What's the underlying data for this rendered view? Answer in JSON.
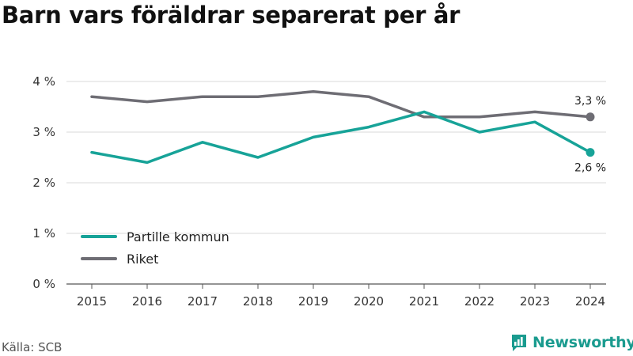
{
  "colors": {
    "series_primary": "#17a398",
    "series_secondary": "#6e6d74",
    "grid": "#d9d9d9",
    "axis_text": "#333333",
    "brand": "#1a9b8f"
  },
  "footer": {
    "source": "Källa: SCB",
    "brand": "Newsworthy"
  },
  "chart_data": {
    "type": "line",
    "title": "Barn vars föräldrar separerat per år",
    "x": [
      2015,
      2016,
      2017,
      2018,
      2019,
      2020,
      2021,
      2022,
      2023,
      2024
    ],
    "series": [
      {
        "name": "Partille kommun",
        "values": [
          2.6,
          2.4,
          2.8,
          2.5,
          2.9,
          3.1,
          3.4,
          3.0,
          3.2,
          2.6
        ],
        "end_label": "2,6 %"
      },
      {
        "name": "Riket",
        "values": [
          3.7,
          3.6,
          3.7,
          3.7,
          3.8,
          3.7,
          3.3,
          3.3,
          3.4,
          3.3
        ],
        "end_label": "3,3 %"
      }
    ],
    "ylim": [
      0,
      4
    ],
    "y_ticks": [
      0,
      1,
      2,
      3,
      4
    ],
    "y_tick_labels": [
      "0 %",
      "1 %",
      "2 %",
      "3 %",
      "4 %"
    ],
    "grid": true,
    "legend_position": "lower-left"
  }
}
